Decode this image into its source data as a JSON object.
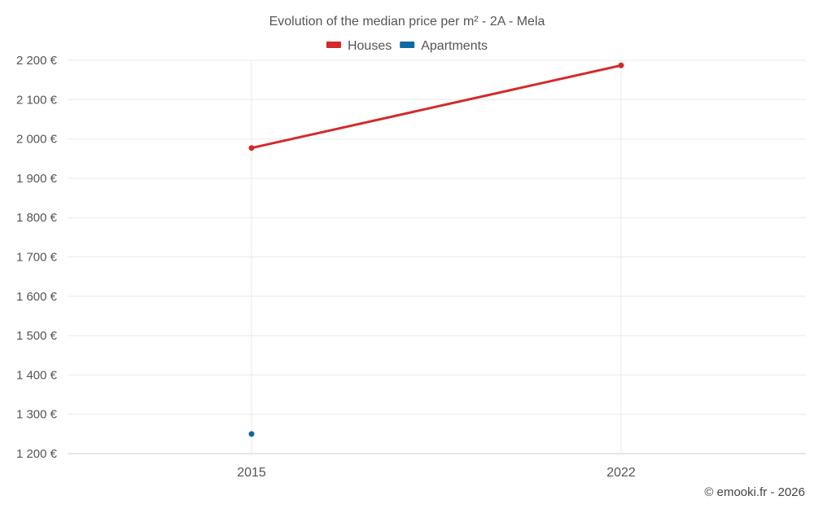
{
  "chart_data": {
    "type": "line",
    "title": "Evolution of the median price per m² - 2A - Mela",
    "categories": [
      "2015",
      "2022"
    ],
    "series": [
      {
        "name": "Houses",
        "color": "#d32a2a",
        "values": [
          1977,
          2187
        ]
      },
      {
        "name": "Apartments",
        "color": "#0d6aa3",
        "values": [
          1250,
          null
        ]
      }
    ],
    "ylim": [
      1200,
      2200
    ],
    "yticks": [
      1200,
      1300,
      1400,
      1500,
      1600,
      1700,
      1800,
      1900,
      2000,
      2100,
      2200
    ],
    "ytick_labels": [
      "1 200 €",
      "1 300 €",
      "1 400 €",
      "1 500 €",
      "1 600 €",
      "1 700 €",
      "1 800 €",
      "1 900 €",
      "2 000 €",
      "2 100 €",
      "2 200 €"
    ],
    "xlabel": "",
    "ylabel": "",
    "grid": true,
    "legend": "top-center"
  },
  "credit": "© emooki.fr - 2026"
}
